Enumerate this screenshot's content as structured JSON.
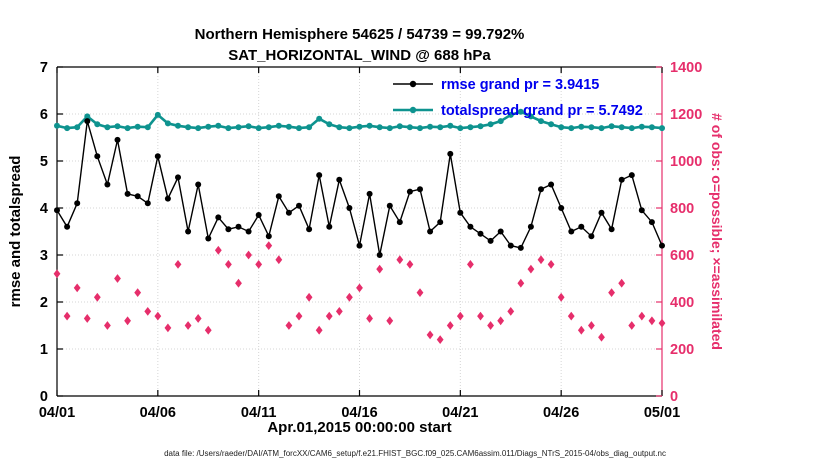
{
  "title_line1": "Northern Hemisphere 54625 / 54739 = 99.792%",
  "title_line2": "SAT_HORIZONTAL_WIND @ 688 hPa",
  "caption": "data file: /Users/raeder/DAI/ATM_forcXX/CAM6_setup/f.e21.FHIST_BGC.f09_025.CAM6assim.011/Diags_NTrS_2015-04/obs_diag_output.nc",
  "chart_data": {
    "type": "line",
    "title": "Northern Hemisphere 54625 / 54739 = 99.792% | SAT_HORIZONTAL_WIND @ 688 hPa",
    "xlabel": "Apr.01,2015 00:00:00 start",
    "ylabel_left": "rmse and totalspread",
    "ylabel_right": "# of obs: o=possible; ×=assimilated",
    "x_ticks": [
      "04/01",
      "04/06",
      "04/11",
      "04/16",
      "04/21",
      "04/26",
      "05/01"
    ],
    "x_tick_days": [
      0,
      5,
      10,
      15,
      20,
      25,
      30
    ],
    "x_range_days": [
      0,
      30
    ],
    "x_start_day": 0,
    "x_step_days": 0.5,
    "ylim_left": [
      0,
      7
    ],
    "yticks_left": [
      0,
      1,
      2,
      3,
      4,
      5,
      6,
      7
    ],
    "ylim_right": [
      0,
      1400
    ],
    "yticks_right": [
      0,
      200,
      400,
      600,
      800,
      1000,
      1200,
      1400
    ],
    "grid": true,
    "legend_position": "top-center-inside",
    "colors": {
      "rmse": "#000000",
      "totalspread": "#0e938f",
      "obs": "#e62e6b",
      "legend_text": "#0000ee",
      "grid": "#d6d6d6",
      "axis": "#000000"
    },
    "series": [
      {
        "name": "obs_count",
        "axis": "right",
        "marker": "diamond",
        "line": false,
        "color": "#e62e6b",
        "values": [
          520,
          340,
          460,
          330,
          420,
          300,
          500,
          320,
          440,
          360,
          340,
          290,
          560,
          300,
          330,
          280,
          620,
          560,
          480,
          600,
          560,
          640,
          580,
          300,
          340,
          420,
          280,
          340,
          360,
          420,
          460,
          330,
          540,
          320,
          580,
          560,
          440,
          260,
          240,
          300,
          340,
          560,
          340,
          300,
          320,
          360,
          480,
          540,
          580,
          560,
          420,
          340,
          280,
          300,
          250,
          440,
          480,
          300,
          340,
          320,
          310
        ]
      },
      {
        "name": "totalspread",
        "legend_label": "totalspread grand pr = 5.7492",
        "grand_pr": 5.7492,
        "axis": "left",
        "marker": "circle",
        "line": true,
        "line_width": 2.6,
        "color": "#0e938f",
        "values": [
          5.75,
          5.7,
          5.72,
          5.95,
          5.78,
          5.72,
          5.74,
          5.7,
          5.73,
          5.72,
          5.98,
          5.8,
          5.75,
          5.72,
          5.7,
          5.73,
          5.75,
          5.7,
          5.72,
          5.74,
          5.7,
          5.72,
          5.75,
          5.73,
          5.7,
          5.72,
          5.9,
          5.78,
          5.72,
          5.7,
          5.73,
          5.75,
          5.72,
          5.7,
          5.74,
          5.72,
          5.7,
          5.73,
          5.72,
          5.75,
          5.7,
          5.72,
          5.74,
          5.78,
          5.85,
          5.98,
          6.05,
          5.95,
          5.85,
          5.78,
          5.72,
          5.7,
          5.73,
          5.72,
          5.7,
          5.74,
          5.72,
          5.7,
          5.73,
          5.72,
          5.7
        ]
      },
      {
        "name": "rmse",
        "legend_label": "rmse grand pr = 3.9415",
        "grand_pr": 3.9415,
        "axis": "left",
        "marker": "circle",
        "line": true,
        "line_width": 1.4,
        "color": "#000000",
        "values": [
          3.95,
          3.6,
          4.1,
          5.85,
          5.1,
          4.5,
          5.45,
          4.3,
          4.25,
          4.1,
          5.1,
          4.2,
          4.65,
          3.5,
          4.5,
          3.35,
          3.8,
          3.55,
          3.6,
          3.5,
          3.85,
          3.4,
          4.25,
          3.9,
          4.05,
          3.55,
          4.7,
          3.6,
          4.6,
          4.0,
          3.2,
          4.3,
          3.0,
          4.05,
          3.7,
          4.35,
          4.4,
          3.5,
          3.7,
          5.15,
          3.9,
          3.6,
          3.45,
          3.3,
          3.5,
          3.2,
          3.15,
          3.6,
          4.4,
          4.5,
          4.0,
          3.5,
          3.6,
          3.4,
          3.9,
          3.55,
          4.6,
          4.7,
          3.95,
          3.7,
          3.2
        ]
      }
    ]
  }
}
